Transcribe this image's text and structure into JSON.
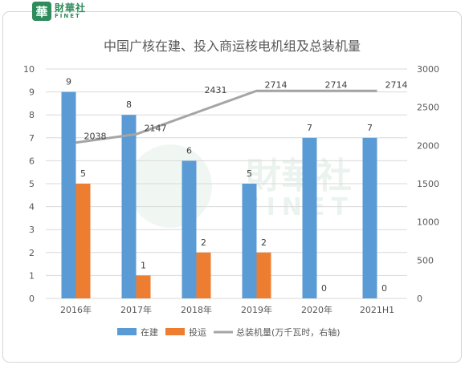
{
  "brand": {
    "badge": "華",
    "name_cn": "財華社",
    "name_en": "FINET",
    "color": "#2e8b5b"
  },
  "chart_data": {
    "type": "bar",
    "title": "中国广核在建、投入商运核电机组及总装机量",
    "categories": [
      "2016年",
      "2017年",
      "2018年",
      "2019年",
      "2020年",
      "2021H1"
    ],
    "series": [
      {
        "name": "在建",
        "kind": "bar",
        "axis": "left",
        "color": "#5b9bd5",
        "values": [
          9,
          8,
          6,
          5,
          7,
          7
        ]
      },
      {
        "name": "投运",
        "kind": "bar",
        "axis": "left",
        "color": "#ed7d31",
        "values": [
          5,
          1,
          2,
          2,
          0,
          0
        ]
      },
      {
        "name": "总装机量(万千瓦时，右轴)",
        "kind": "line",
        "axis": "right",
        "color": "#a5a5a5",
        "values": [
          2038,
          2147,
          2431,
          2714,
          2714,
          2714
        ]
      }
    ],
    "y_left": {
      "min": 0,
      "max": 10,
      "ticks": [
        0,
        1,
        2,
        3,
        4,
        5,
        6,
        7,
        8,
        9,
        10
      ]
    },
    "y_right": {
      "min": 0,
      "max": 3000,
      "ticks": [
        0,
        500,
        1000,
        1500,
        2000,
        2500,
        3000
      ]
    },
    "grid": true,
    "legend_position": "bottom",
    "watermark": {
      "cn": "財華社",
      "en": "FINET"
    }
  }
}
